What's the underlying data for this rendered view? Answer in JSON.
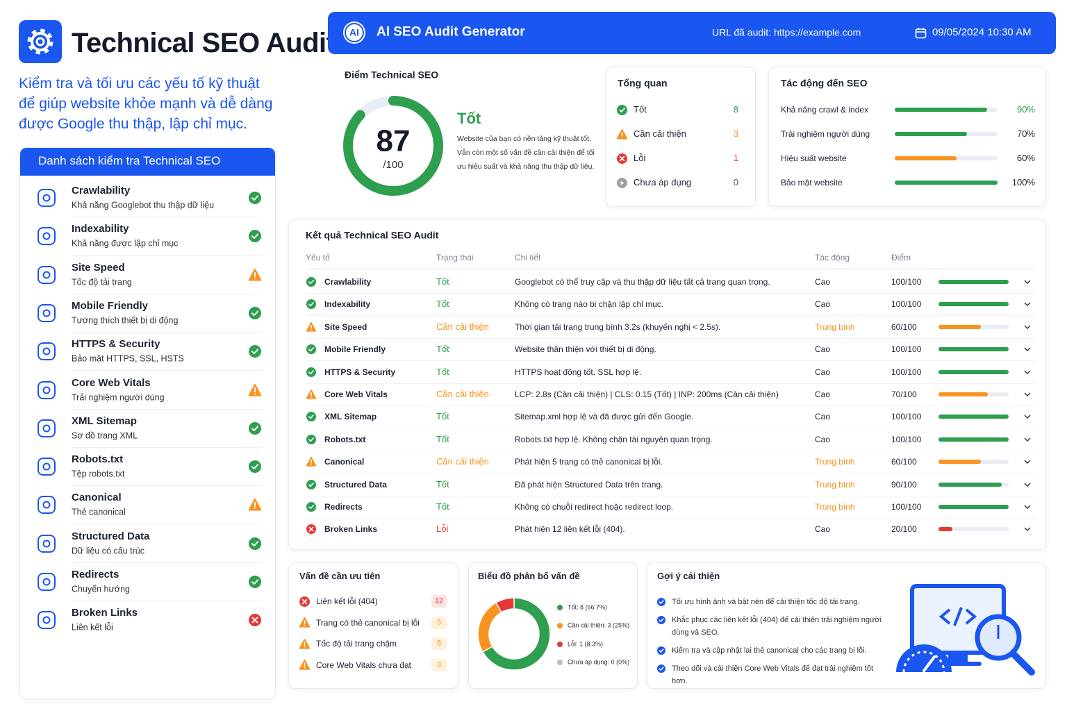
{
  "header": {
    "title": "Technical SEO Audit",
    "subtitle": "Kiểm tra và tối ưu các yếu tố kỹ thuật để giúp website khỏe mạnh và dễ dàng được Google thu thập, lập chỉ mục."
  },
  "checklist": {
    "title": "Danh sách kiểm tra Technical SEO",
    "items": [
      {
        "name": "Crawlability",
        "desc": "Khả năng Googlebot thu thập dữ liệu",
        "status": "ok"
      },
      {
        "name": "Indexability",
        "desc": "Khả năng được lập chỉ mục",
        "status": "ok"
      },
      {
        "name": "Site Speed",
        "desc": "Tốc độ tải trang",
        "status": "warn"
      },
      {
        "name": "Mobile Friendly",
        "desc": "Tương thích thiết bị di động",
        "status": "ok"
      },
      {
        "name": "HTTPS & Security",
        "desc": "Bảo mật HTTPS, SSL, HSTS",
        "status": "ok"
      },
      {
        "name": "Core Web Vitals",
        "desc": "Trải nghiệm người dùng",
        "status": "warn"
      },
      {
        "name": "XML Sitemap",
        "desc": "Sơ đồ trang XML",
        "status": "ok"
      },
      {
        "name": "Robots.txt",
        "desc": "Tệp robots.txt",
        "status": "ok"
      },
      {
        "name": "Canonical",
        "desc": "Thẻ canonical",
        "status": "warn"
      },
      {
        "name": "Structured Data",
        "desc": "Dữ liệu có cấu trúc",
        "status": "ok"
      },
      {
        "name": "Redirects",
        "desc": "Chuyển hướng",
        "status": "ok"
      },
      {
        "name": "Broken Links",
        "desc": "Liên kết lỗi",
        "status": "error"
      }
    ]
  },
  "topbar": {
    "logo": "AI",
    "title": "AI SEO Audit Generator",
    "url": "URL đã audit: https://example.com",
    "date": "09/05/2024 10:30 AM"
  },
  "score": {
    "title": "Điểm Technical SEO",
    "value": 87,
    "max": {
      "value": 100,
      "label": "/100"
    },
    "rating": "Tốt",
    "text": "Website của bạn có nền tảng kỹ thuật tốt. Vẫn còn một số vấn đề cần cải thiện để tối ưu hiệu suất và khả năng thu thập dữ liệu."
  },
  "overview": {
    "title": "Tổng quan",
    "items": [
      {
        "label": "Tốt",
        "count": 8,
        "status": "ok"
      },
      {
        "label": "Cần cải thiện",
        "count": 3,
        "status": "warn"
      },
      {
        "label": "Lỗi",
        "count": 1,
        "status": "error"
      },
      {
        "label": "Chưa áp dụng",
        "count": 0,
        "status": "na"
      }
    ]
  },
  "impact": {
    "title": "Tác động đến SEO",
    "xlim": [
      0,
      100
    ],
    "items": [
      {
        "label": "Khả năng crawl & index",
        "value": 90,
        "value_label": "90%",
        "color": "#2e9e4f"
      },
      {
        "label": "Trải nghiệm người dùng",
        "value": 70,
        "value_label": "70%",
        "color": "#2e9e4f"
      },
      {
        "label": "Hiệu suất website",
        "value": 60,
        "value_label": "60%",
        "color": "#f7931e"
      },
      {
        "label": "Bảo mật website",
        "value": 100,
        "value_label": "100%",
        "color": "#2e9e4f"
      }
    ]
  },
  "results": {
    "title": "Kết quả Technical SEO Audit",
    "columns": [
      "Yếu tố",
      "Trạng thái",
      "Chi tiết",
      "Tác động",
      "Điểm"
    ],
    "xlim": [
      0,
      100
    ],
    "rows": [
      {
        "factor": "Crawlability",
        "status": "ok",
        "status_label": "Tốt",
        "detail": "Googlebot có thể truy cập và thu thập dữ liệu tất cả trang quan trọng.",
        "impact": "Cao",
        "impact_color": "#1d2433",
        "score": {
          "value": 100,
          "label": "100/100"
        }
      },
      {
        "factor": "Indexability",
        "status": "ok",
        "status_label": "Tốt",
        "detail": "Không có trang nào bị chặn lập chỉ mục.",
        "impact": "Cao",
        "impact_color": "#1d2433",
        "score": {
          "value": 100,
          "label": "100/100"
        }
      },
      {
        "factor": "Site Speed",
        "status": "warn",
        "status_label": "Cần cải thiện",
        "detail": "Thời gian tải trang trung bình 3.2s (khuyến nghị < 2.5s).",
        "impact": "Trung bình",
        "impact_color": "#f7931e",
        "score": {
          "value": 60,
          "label": "60/100"
        }
      },
      {
        "factor": "Mobile Friendly",
        "status": "ok",
        "status_label": "Tốt",
        "detail": "Website thân thiện với thiết bị di động.",
        "impact": "Cao",
        "impact_color": "#1d2433",
        "score": {
          "value": 100,
          "label": "100/100"
        }
      },
      {
        "factor": "HTTPS & Security",
        "status": "ok",
        "status_label": "Tốt",
        "detail": "HTTPS hoạt động tốt. SSL hợp lệ.",
        "impact": "Cao",
        "impact_color": "#1d2433",
        "score": {
          "value": 100,
          "label": "100/100"
        }
      },
      {
        "factor": "Core Web Vitals",
        "status": "warn",
        "status_label": "Cần cải thiện",
        "detail": "LCP: 2.8s (Cần cải thiện) | CLS: 0.15 (Tốt) | INP: 200ms (Cần cải thiện)",
        "impact": "Cao",
        "impact_color": "#1d2433",
        "score": {
          "value": 70,
          "label": "70/100"
        }
      },
      {
        "factor": "XML Sitemap",
        "status": "ok",
        "status_label": "Tốt",
        "detail": "Sitemap.xml hợp lệ và đã được gửi đến Google.",
        "impact": "Cao",
        "impact_color": "#1d2433",
        "score": {
          "value": 100,
          "label": "100/100"
        }
      },
      {
        "factor": "Robots.txt",
        "status": "ok",
        "status_label": "Tốt",
        "detail": "Robots.txt hợp lệ. Không chặn tài nguyên quan trọng.",
        "impact": "Cao",
        "impact_color": "#1d2433",
        "score": {
          "value": 100,
          "label": "100/100"
        }
      },
      {
        "factor": "Canonical",
        "status": "warn",
        "status_label": "Cần cải thiện",
        "detail": "Phát hiện 5 trang có thẻ canonical bị lỗi.",
        "impact": "Trung bình",
        "impact_color": "#f7931e",
        "score": {
          "value": 60,
          "label": "60/100"
        }
      },
      {
        "factor": "Structured Data",
        "status": "ok",
        "status_label": "Tốt",
        "detail": "Đã phát hiện Structured Data trên trang.",
        "impact": "Trung bình",
        "impact_color": "#f7931e",
        "score": {
          "value": 90,
          "label": "90/100"
        }
      },
      {
        "factor": "Redirects",
        "status": "ok",
        "status_label": "Tốt",
        "detail": "Không có chuỗi redirect hoặc redirect loop.",
        "impact": "Trung bình",
        "impact_color": "#f7931e",
        "score": {
          "value": 100,
          "label": "100/100"
        }
      },
      {
        "factor": "Broken Links",
        "status": "error",
        "status_label": "Lỗi",
        "detail": "Phát hiện 12 liên kết lỗi (404).",
        "impact": "Cao",
        "impact_color": "#1d2433",
        "score": {
          "value": 20,
          "label": "20/100"
        }
      }
    ]
  },
  "priority": {
    "title": "Vấn đề cần ưu tiên",
    "items": [
      {
        "label": "Liên kết lỗi (404)",
        "count": 12,
        "status": "error"
      },
      {
        "label": "Trang có thẻ canonical bị lỗi",
        "count": 5,
        "status": "warn"
      },
      {
        "label": "Tốc độ tải trang chậm",
        "count": 8,
        "status": "warn"
      },
      {
        "label": "Core Web Vitals chưa đạt",
        "count": 3,
        "status": "warn"
      }
    ]
  },
  "distribution": {
    "type": "donut",
    "title": "Biểu đồ phân bố vấn đề",
    "values": [
      8,
      3,
      1,
      0
    ],
    "value_labels": [
      "Tốt: 8 (66.7%)",
      "Cần cải thiện: 3 (25%)",
      "Lỗi: 1 (8.3%)",
      "Chưa áp dụng: 0 (0%)"
    ],
    "colors": [
      "#2e9e4f",
      "#f7931e",
      "#e53935",
      "#b8bcc6"
    ]
  },
  "suggestions": {
    "title": "Gợi ý cải thiện",
    "items": [
      "Tối ưu hình ảnh và bật nén để cải thiện tốc độ tải trang.",
      "Khắc phục các liên kết lỗi (404) để cải thiện trải nghiệm người dùng và SEO.",
      "Kiểm tra và cập nhật lại thẻ canonical cho các trang bị lỗi.",
      "Theo dõi và cải thiện Core Web Vitals để đạt trải nghiệm tốt hơn."
    ]
  }
}
